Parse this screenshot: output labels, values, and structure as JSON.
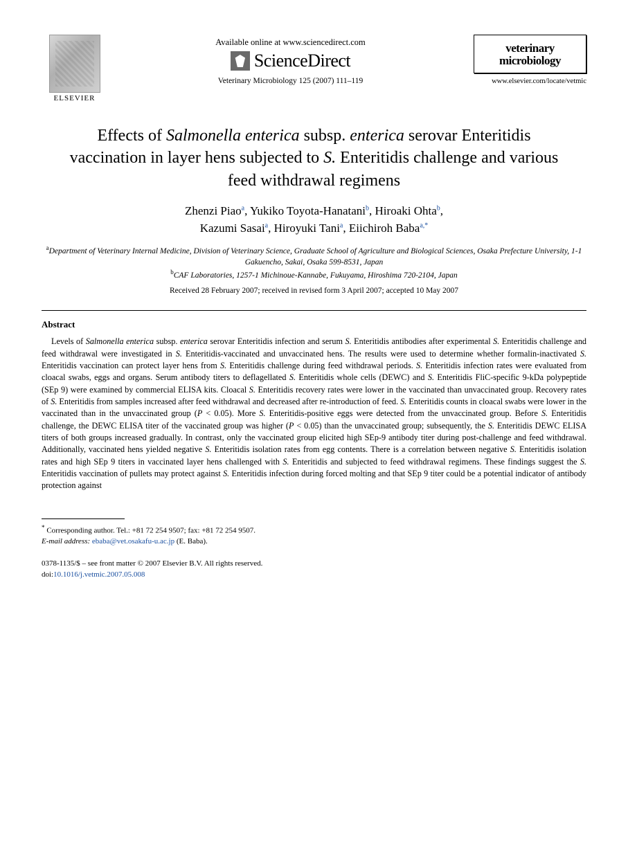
{
  "header": {
    "publisher_label": "ELSEVIER",
    "available_online": "Available online at www.sciencedirect.com",
    "sd_name": "ScienceDirect",
    "citation": "Veterinary Microbiology 125 (2007) 111–119",
    "journal_line1": "veterinary",
    "journal_line2": "microbiology",
    "journal_url": "www.elsevier.com/locate/vetmic"
  },
  "title_parts": {
    "p1": "Effects of ",
    "p2": "Salmonella enterica",
    "p3": " subsp. ",
    "p4": "enterica",
    "p5": " serovar Enteritidis vaccination in layer hens subjected to ",
    "p6": "S.",
    "p7": " Enteritidis challenge and various feed withdrawal regimens"
  },
  "authors": {
    "a1": "Zhenzi Piao",
    "a1_aff": "a",
    "a2": "Yukiko Toyota-Hanatani",
    "a2_aff": "b",
    "a3": "Hiroaki Ohta",
    "a3_aff": "b",
    "a4": "Kazumi Sasai",
    "a4_aff": "a",
    "a5": "Hiroyuki Tani",
    "a5_aff": "a",
    "a6": "Eiichiroh Baba",
    "a6_aff": "a,",
    "corr_mark": "*"
  },
  "affiliations": {
    "a_sup": "a",
    "a_text": "Department of Veterinary Internal Medicine, Division of Veterinary Science, Graduate School of Agriculture and Biological Sciences, Osaka Prefecture University, 1-1 Gakuencho, Sakai, Osaka 599-8531, Japan",
    "b_sup": "b",
    "b_text": "CAF Laboratories, 1257-1 Michinoue-Kannabe, Fukuyama, Hiroshima 720-2104, Japan"
  },
  "dates": "Received 28 February 2007; received in revised form 3 April 2007; accepted 10 May 2007",
  "abstract_heading": "Abstract",
  "abstract_text": "Levels of Salmonella enterica subsp. enterica serovar Enteritidis infection and serum S. Enteritidis antibodies after experimental S. Enteritidis challenge and feed withdrawal were investigated in S. Enteritidis-vaccinated and unvaccinated hens. The results were used to determine whether formalin-inactivated S. Enteritidis vaccination can protect layer hens from S. Enteritidis challenge during feed withdrawal periods. S. Enteritidis infection rates were evaluated from cloacal swabs, eggs and organs. Serum antibody titers to deflagellated S. Enteritidis whole cells (DEWC) and S. Enteritidis FliC-specific 9-kDa polypeptide (SEp 9) were examined by commercial ELISA kits. Cloacal S. Enteritidis recovery rates were lower in the vaccinated than unvaccinated group. Recovery rates of S. Enteritidis from samples increased after feed withdrawal and decreased after re-introduction of feed. S. Enteritidis counts in cloacal swabs were lower in the vaccinated than in the unvaccinated group (P < 0.05). More S. Enteritidis-positive eggs were detected from the unvaccinated group. Before S. Enteritidis challenge, the DEWC ELISA titer of the vaccinated group was higher (P < 0.05) than the unvaccinated group; subsequently, the S. Enteritidis DEWC ELISA titers of both groups increased gradually. In contrast, only the vaccinated group elicited high SEp-9 antibody titer during post-challenge and feed withdrawal. Additionally, vaccinated hens yielded negative S. Enteritidis isolation rates from egg contents. There is a correlation between negative S. Enteritidis isolation rates and high SEp 9 titers in vaccinated layer hens challenged with S. Enteritidis and subjected to feed withdrawal regimens. These findings suggest the S. Enteritidis vaccination of pullets may protect against S. Enteritidis infection during forced molting and that SEp 9 titer could be a potential indicator of antibody protection against",
  "footnote": {
    "corr_text": "Corresponding author. Tel.: +81 72 254 9507; fax: +81 72 254 9507.",
    "email_label": "E-mail address:",
    "email": "ebaba@vet.osakafu-u.ac.jp",
    "email_who": "(E. Baba)."
  },
  "article_id": {
    "line1": "0378-1135/$ – see front matter © 2007 Elsevier B.V. All rights reserved.",
    "doi_label": "doi:",
    "doi": "10.1016/j.vetmic.2007.05.008"
  }
}
